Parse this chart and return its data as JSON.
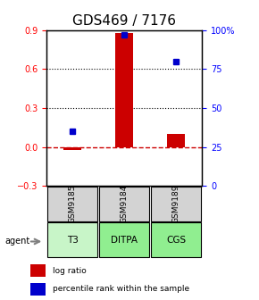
{
  "title": "GDS469 / 7176",
  "samples": [
    "GSM9185",
    "GSM9184",
    "GSM9189"
  ],
  "agents": [
    "T3",
    "DITPA",
    "CGS"
  ],
  "log_ratios": [
    -0.02,
    0.88,
    0.1
  ],
  "percentile_ranks": [
    0.35,
    0.97,
    0.8
  ],
  "ylim_left": [
    -0.3,
    0.9
  ],
  "ylim_right": [
    0,
    100
  ],
  "yticks_left": [
    -0.3,
    0,
    0.3,
    0.6,
    0.9
  ],
  "yticks_right": [
    0,
    25,
    50,
    75,
    100
  ],
  "bar_color": "#cc0000",
  "dot_color": "#0000cc",
  "agent_colors": [
    "#c8f0c8",
    "#90ee90",
    "#90ee90"
  ],
  "sample_bg": "#d3d3d3",
  "legend_bar_label": "log ratio",
  "legend_dot_label": "percentile rank within the sample",
  "zero_line_color": "#cc0000",
  "grid_color": "#000000",
  "title_fontsize": 11,
  "bar_width": 0.35
}
